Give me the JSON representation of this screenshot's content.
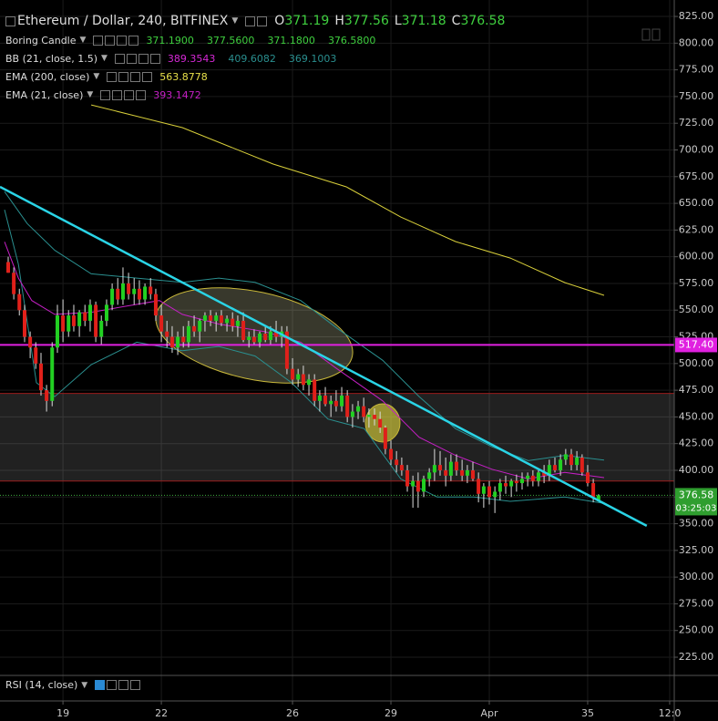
{
  "header": {
    "title": "Ethereum / Dollar, 240, BITFINEX",
    "ohlc": [
      {
        "label": "O",
        "value": "371.19"
      },
      {
        "label": "H",
        "value": "377.56"
      },
      {
        "label": "L",
        "value": "371.18"
      },
      {
        "label": "C",
        "value": "376.58"
      }
    ]
  },
  "legend": [
    {
      "name": "Boring Candle",
      "values": [
        "371.1900",
        "377.5600",
        "371.1800",
        "376.5800"
      ],
      "colors": [
        "#3fcf3f",
        "#3fcf3f",
        "#3fcf3f",
        "#3fcf3f"
      ]
    },
    {
      "name": "BB (21, close, 1.5)",
      "values": [
        "389.3543",
        "409.6082",
        "369.1003"
      ],
      "colors": [
        "#d628d6",
        "#2a8f8f",
        "#2a8f8f"
      ]
    },
    {
      "name": "EMA (200, close)",
      "values": [
        "563.8778"
      ],
      "colors": [
        "#e8e04a"
      ]
    },
    {
      "name": "EMA (21, close)",
      "values": [
        "393.1472"
      ],
      "colors": [
        "#c51fc5"
      ]
    }
  ],
  "rsi_label": "RSI (14, close)",
  "chart_data": {
    "type": "candlestick",
    "up_color": "#22d022",
    "down_color": "#e0201a",
    "grid": true,
    "xlim": [
      17.08,
      37.64
    ],
    "ylim": [
      208.8,
      840.4
    ],
    "xticks": [
      19,
      22,
      26,
      29,
      {
        "value": 32,
        "label": "Apr"
      },
      35,
      {
        "value": 37.5,
        "label": "12:0"
      }
    ],
    "yticks": [
      {
        "value": 225,
        "label": "225.00"
      },
      {
        "value": 250,
        "label": "250.00"
      },
      {
        "value": 275,
        "label": "275.00"
      },
      {
        "value": 300,
        "label": "300.00"
      },
      {
        "value": 325,
        "label": "325.00"
      },
      {
        "value": 350,
        "label": "350.00"
      },
      {
        "value": 375,
        "label": "375.00"
      },
      {
        "value": 400,
        "label": "400.00"
      },
      {
        "value": 425,
        "label": "425.00"
      },
      {
        "value": 450,
        "label": "450.00"
      },
      {
        "value": 475,
        "label": "475.00"
      },
      {
        "value": 500,
        "label": "500.00"
      },
      {
        "value": 525,
        "label": "525.00"
      },
      {
        "value": 550,
        "label": "550.00"
      },
      {
        "value": 575,
        "label": "575.00"
      },
      {
        "value": 600,
        "label": "600.00"
      },
      {
        "value": 625,
        "label": "625.00"
      },
      {
        "value": 650,
        "label": "650.00"
      },
      {
        "value": 675,
        "label": "675.00"
      },
      {
        "value": 700,
        "label": "700.00"
      },
      {
        "value": 725,
        "label": "725.00"
      },
      {
        "value": 750,
        "label": "750.00"
      },
      {
        "value": 775,
        "label": "775.00"
      },
      {
        "value": 800,
        "label": "800.00"
      },
      {
        "value": 825,
        "label": "825.00"
      }
    ],
    "x": [
      17.33,
      17.5,
      17.67,
      17.83,
      18,
      18.17,
      18.33,
      18.5,
      18.67,
      18.83,
      19,
      19.17,
      19.33,
      19.5,
      19.67,
      19.83,
      20,
      20.17,
      20.33,
      20.5,
      20.67,
      20.83,
      21,
      21.17,
      21.33,
      21.5,
      21.67,
      21.83,
      22,
      22.17,
      22.33,
      22.5,
      22.67,
      22.83,
      23,
      23.17,
      23.33,
      23.5,
      23.67,
      23.83,
      24,
      24.17,
      24.33,
      24.5,
      24.67,
      24.83,
      25,
      25.17,
      25.33,
      25.5,
      25.67,
      25.83,
      26,
      26.17,
      26.33,
      26.5,
      26.67,
      26.83,
      27,
      27.17,
      27.33,
      27.5,
      27.67,
      27.83,
      28,
      28.17,
      28.33,
      28.5,
      28.67,
      28.83,
      29,
      29.17,
      29.33,
      29.5,
      29.67,
      29.83,
      30,
      30.17,
      30.33,
      30.5,
      30.67,
      30.83,
      31,
      31.17,
      31.33,
      31.5,
      31.67,
      31.83,
      32,
      32.17,
      32.33,
      32.5,
      32.67,
      32.83,
      33,
      33.17,
      33.33,
      33.5,
      33.67,
      33.83,
      34,
      34.17,
      34.33,
      34.5,
      34.67,
      34.83,
      35,
      35.17,
      35.33
    ],
    "open": [
      595,
      585,
      565,
      550,
      525,
      515,
      500,
      475,
      465,
      515,
      545,
      530,
      545,
      535,
      548,
      540,
      555,
      525,
      540,
      555,
      570,
      560,
      575,
      565,
      570,
      560,
      572,
      565,
      545,
      530,
      525,
      515,
      525,
      520,
      535,
      530,
      540,
      545,
      540,
      545,
      538,
      542,
      535,
      540,
      522,
      525,
      520,
      528,
      522,
      530,
      525,
      530,
      495,
      485,
      490,
      480,
      485,
      465,
      470,
      462,
      465,
      460,
      470,
      450,
      455,
      460,
      450,
      452,
      448,
      440,
      420,
      410,
      405,
      400,
      385,
      390,
      380,
      392,
      398,
      405,
      400,
      395,
      408,
      400,
      395,
      400,
      392,
      378,
      385,
      375,
      380,
      388,
      385,
      390,
      388,
      392,
      395,
      390,
      398,
      395,
      405,
      400,
      410,
      415,
      405,
      412,
      398,
      388,
      371.19
    ],
    "high": [
      600,
      590,
      570,
      555,
      530,
      520,
      510,
      480,
      520,
      555,
      560,
      550,
      555,
      550,
      555,
      560,
      558,
      545,
      560,
      575,
      580,
      590,
      585,
      580,
      578,
      575,
      580,
      570,
      555,
      540,
      535,
      530,
      535,
      540,
      545,
      542,
      548,
      550,
      548,
      550,
      545,
      548,
      545,
      548,
      530,
      532,
      530,
      535,
      535,
      540,
      535,
      535,
      505,
      495,
      498,
      490,
      490,
      475,
      478,
      470,
      475,
      478,
      475,
      462,
      465,
      468,
      458,
      458,
      455,
      442,
      428,
      418,
      412,
      405,
      395,
      398,
      395,
      402,
      420,
      418,
      412,
      415,
      415,
      410,
      405,
      408,
      398,
      388,
      390,
      385,
      392,
      395,
      392,
      396,
      398,
      398,
      400,
      400,
      405,
      410,
      412,
      415,
      420,
      420,
      418,
      415,
      405,
      392,
      377.56
    ],
    "low": [
      585,
      560,
      545,
      520,
      505,
      495,
      470,
      455,
      460,
      510,
      520,
      525,
      530,
      525,
      535,
      530,
      520,
      518,
      535,
      550,
      555,
      555,
      560,
      555,
      555,
      555,
      560,
      540,
      520,
      515,
      510,
      508,
      515,
      515,
      525,
      520,
      530,
      535,
      530,
      535,
      530,
      530,
      525,
      520,
      515,
      518,
      515,
      520,
      518,
      520,
      515,
      490,
      480,
      478,
      475,
      470,
      460,
      455,
      460,
      450,
      455,
      455,
      445,
      440,
      448,
      445,
      440,
      442,
      435,
      415,
      405,
      398,
      395,
      380,
      365,
      365,
      375,
      385,
      390,
      395,
      385,
      390,
      395,
      390,
      388,
      390,
      370,
      365,
      368,
      360,
      372,
      378,
      375,
      380,
      382,
      385,
      385,
      385,
      388,
      390,
      398,
      395,
      405,
      400,
      400,
      395,
      385,
      370,
      371.18
    ],
    "close": [
      585,
      565,
      550,
      525,
      515,
      500,
      475,
      465,
      515,
      545,
      530,
      545,
      535,
      548,
      540,
      555,
      525,
      540,
      555,
      570,
      560,
      575,
      565,
      570,
      560,
      572,
      565,
      545,
      530,
      525,
      515,
      525,
      520,
      535,
      530,
      540,
      545,
      540,
      545,
      538,
      542,
      535,
      540,
      522,
      525,
      520,
      528,
      522,
      530,
      525,
      530,
      495,
      485,
      490,
      480,
      485,
      465,
      470,
      462,
      465,
      460,
      470,
      450,
      455,
      460,
      450,
      452,
      448,
      440,
      420,
      410,
      405,
      400,
      385,
      390,
      380,
      392,
      398,
      405,
      400,
      395,
      408,
      400,
      395,
      400,
      392,
      378,
      385,
      375,
      380,
      388,
      385,
      390,
      388,
      392,
      395,
      390,
      398,
      395,
      405,
      400,
      410,
      415,
      405,
      412,
      398,
      388,
      375,
      376.58
    ],
    "lines": [
      {
        "color": "#2a8f8f",
        "x": [
          17.22,
          17.91,
          18.75,
          19.86,
          21.25,
          22.64,
          23.75,
          24.86,
          26.25,
          27.36,
          28.75,
          29.86,
          30.97,
          32.08,
          33.19,
          34.3,
          35.5
        ],
        "values": [
          661,
          631,
          606,
          584,
          580,
          576,
          580,
          576,
          559,
          533,
          503,
          469,
          439,
          422,
          409,
          414,
          409.61
        ]
      },
      {
        "color": "#2a8f8f",
        "x": [
          17.22,
          17.64,
          18.19,
          18.75,
          19.86,
          21.25,
          22.64,
          23.75,
          24.86,
          25.97,
          27.08,
          28.19,
          29.3,
          30.41,
          31.53,
          32.64,
          34.3,
          35.5
        ],
        "values": [
          644,
          593,
          482,
          469,
          499,
          520,
          512,
          516,
          507,
          482,
          448,
          439,
          392,
          375,
          375,
          371,
          375,
          369.1
        ]
      },
      {
        "color": "#c51fc5",
        "x": [
          17.22,
          17.64,
          18.05,
          18.75,
          19.86,
          20.97,
          21.94,
          22.64,
          23.75,
          25.14,
          26.25,
          27.36,
          28.75,
          29.86,
          30.97,
          32.08,
          33.19,
          34.3,
          35.5
        ],
        "values": [
          614,
          580,
          559,
          546,
          548,
          554,
          559,
          546,
          537,
          530,
          520,
          495,
          465,
          431,
          414,
          401,
          392,
          398,
          393.15
        ]
      },
      {
        "color": "#d8cf3a",
        "x": [
          19.86,
          22.64,
          25.41,
          27.64,
          29.3,
          30.97,
          32.64,
          34.3,
          35.5
        ],
        "values": [
          742.2,
          720.9,
          686.8,
          665.4,
          637.2,
          614.2,
          598.8,
          575.8,
          563.88
        ]
      }
    ],
    "trend_line": {
      "color": "#2ad4e6",
      "x": [
        17.08,
        36.8
      ],
      "values": [
        665.4,
        348
      ]
    },
    "zone": {
      "top": 472,
      "bottom": 390
    },
    "level": {
      "value": 517.4,
      "label": "517.40",
      "color": "#e020e0"
    },
    "last_price": {
      "value": 376.58,
      "label": "376.58",
      "countdown": "03:25:03"
    }
  }
}
